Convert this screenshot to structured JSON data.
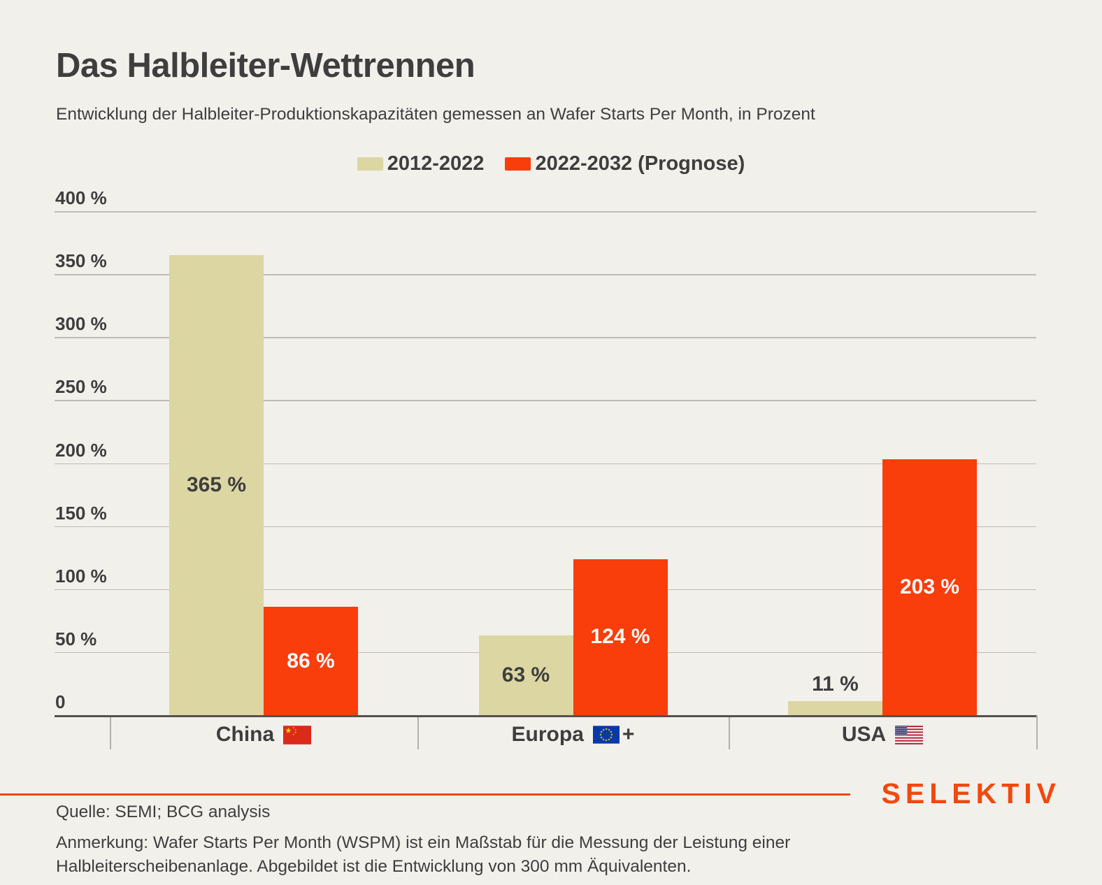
{
  "title": "Das Halbleiter-Wettrennen",
  "subtitle": "Entwicklung der Halbleiter-Produktionskapazitäten gemessen an Wafer Starts Per Month, in Prozent",
  "legend": [
    {
      "label": "2012-2022",
      "color": "#DCD6A3"
    },
    {
      "label": "2022-2032 (Prognose)",
      "color": "#F93D0B"
    }
  ],
  "chart_data": {
    "type": "bar",
    "categories": [
      "China",
      "Europa",
      "USA"
    ],
    "category_flags": [
      "china-flag",
      "eu-flag",
      "us-flag"
    ],
    "category_suffixes": [
      "",
      "+",
      ""
    ],
    "series": [
      {
        "name": "2012-2022",
        "color": "#DCD6A3",
        "label_color": "#3E3E3E",
        "values": [
          365,
          63,
          11
        ],
        "value_labels": [
          "365 %",
          "63 %",
          "11 %"
        ]
      },
      {
        "name": "2022-2032 (Prognose)",
        "color": "#F93D0B",
        "label_color": "#FFFFFF",
        "values": [
          86,
          124,
          203
        ],
        "value_labels": [
          "86 %",
          "124 %",
          "203 %"
        ]
      }
    ],
    "ylim": [
      0,
      400
    ],
    "ytick_values": [
      400,
      350,
      300,
      250,
      200,
      150,
      100,
      50,
      0
    ],
    "ytick_labels": [
      "400 %",
      "350 %",
      "300 %",
      "250 %",
      "200 %",
      "150 %",
      "100 %",
      "50 %",
      "0"
    ],
    "grid": true,
    "legend_position": "top-center"
  },
  "colors": {
    "background": "#F2F0EB",
    "ink": "#3E3E3E",
    "accent": "#F93D0B",
    "beige": "#DCD6A3",
    "brand_orange": "#F2480E"
  },
  "footer": {
    "source": "Quelle: SEMI; BCG analysis",
    "note_lines": [
      "Anmerkung: Wafer Starts Per Month (WSPM) ist ein Maßstab für die Messung der Leistung einer",
      "Halbleiterscheibenanlage. Abgebildet ist die Entwicklung von 300 mm Äquivalenten."
    ],
    "brand": "SELEKTIV"
  }
}
